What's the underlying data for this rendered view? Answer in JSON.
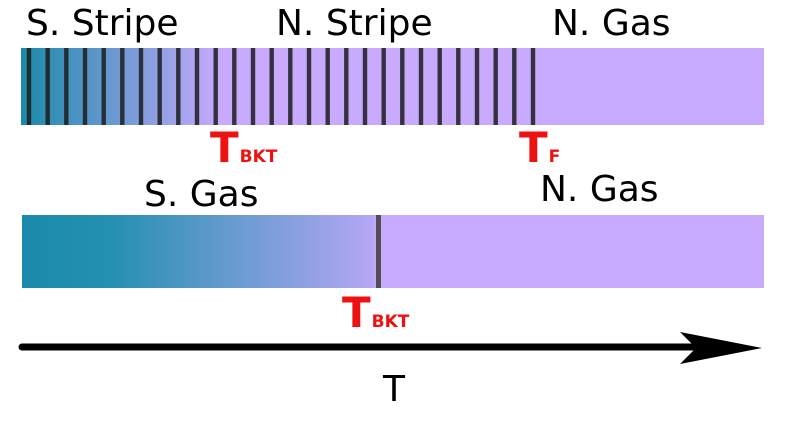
{
  "top_bar": {
    "phase_labels": [
      "S. Stripe",
      "N. Stripe",
      "N. Gas"
    ],
    "transitions": [
      {
        "symbol": "T",
        "subscript": "BKT"
      },
      {
        "symbol": "T",
        "subscript": "F"
      }
    ]
  },
  "bottom_bar": {
    "phase_labels": [
      "S. Gas",
      "N. Gas"
    ],
    "transitions": [
      {
        "symbol": "T",
        "subscript": "BKT"
      }
    ]
  },
  "axis": {
    "label": "T"
  },
  "colors": {
    "superfluid": "#1a8aaa",
    "normal": "#c8aaff",
    "stripe": "#1c1c1c",
    "transition_label": "#ee1111",
    "axis": "#000000"
  }
}
